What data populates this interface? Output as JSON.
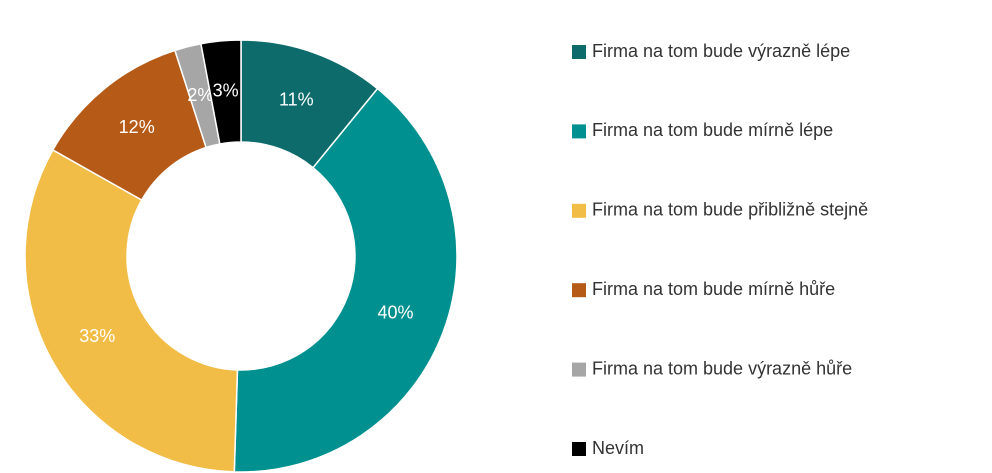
{
  "chart_data": {
    "type": "donut",
    "categories": [
      "Firma na tom bude výrazně lépe",
      "Firma na tom bude mírně lépe",
      "Firma na tom bude přibližně stejně",
      "Firma na tom bude mírně hůře",
      "Firma na tom bude výrazně hůře",
      "Nevím"
    ],
    "values": [
      11,
      40,
      33,
      12,
      2,
      3
    ],
    "value_labels": [
      "11%",
      "40%",
      "33%",
      "12%",
      "2%",
      "3%"
    ],
    "colors": [
      "#0e6b6b",
      "#009090",
      "#f2bd47",
      "#b65a18",
      "#a6a6a6",
      "#000000"
    ],
    "legend": "right"
  }
}
